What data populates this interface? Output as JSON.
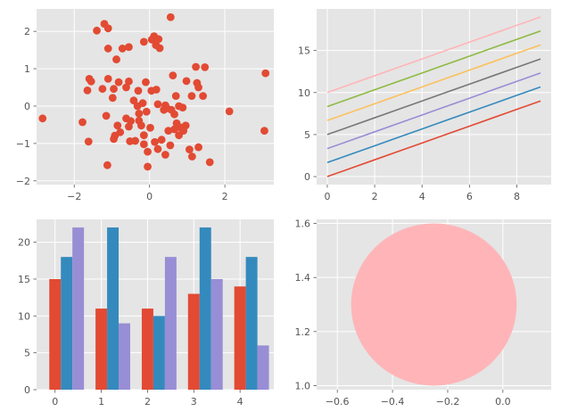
{
  "colors": {
    "background": "#E5E5E5",
    "grid": "#FFFFFF",
    "tick_text": "#555555",
    "cycle": [
      "#E24A33",
      "#348ABD",
      "#988ED5",
      "#777777",
      "#FBC15E",
      "#8EBA42",
      "#FFB5B8"
    ]
  },
  "chart_data": [
    {
      "type": "scatter",
      "xlim": [
        -3.0,
        3.3
      ],
      "ylim": [
        -2.1,
        2.6
      ],
      "xticks": [
        -2,
        0,
        2
      ],
      "yticks": [
        -2,
        -1,
        0,
        1,
        2
      ],
      "xtick_labels": [
        "−2",
        "0",
        "2"
      ],
      "ytick_labels": [
        "−2",
        "−1",
        "0",
        "1",
        "2"
      ],
      "grid": true,
      "color": "#E24A33",
      "points": [
        [
          0.56,
          2.38
        ],
        [
          -1.2,
          2.2
        ],
        [
          -1.1,
          2.08
        ],
        [
          -1.4,
          2.02
        ],
        [
          -0.72,
          1.54
        ],
        [
          -0.55,
          1.58
        ],
        [
          -1.1,
          1.54
        ],
        [
          -0.15,
          1.72
        ],
        [
          0.06,
          1.78
        ],
        [
          0.12,
          1.87
        ],
        [
          0.24,
          1.79
        ],
        [
          0.17,
          1.63
        ],
        [
          0.27,
          1.55
        ],
        [
          -0.88,
          1.25
        ],
        [
          1.23,
          1.05
        ],
        [
          1.47,
          1.04
        ],
        [
          0.62,
          0.82
        ],
        [
          0.98,
          0.67
        ],
        [
          -1.55,
          0.66
        ],
        [
          -1.6,
          0.73
        ],
        [
          -1.1,
          0.73
        ],
        [
          -0.82,
          0.64
        ],
        [
          -0.55,
          0.66
        ],
        [
          -0.1,
          0.64
        ],
        [
          1.26,
          0.62
        ],
        [
          1.3,
          0.5
        ],
        [
          -1.25,
          0.46
        ],
        [
          -0.95,
          0.46
        ],
        [
          -0.62,
          0.5
        ],
        [
          -0.3,
          0.41
        ],
        [
          0.05,
          0.41
        ],
        [
          0.18,
          0.44
        ],
        [
          1.42,
          0.27
        ],
        [
          1.12,
          0.27
        ],
        [
          0.7,
          0.27
        ],
        [
          -1.65,
          0.42
        ],
        [
          -0.98,
          0.22
        ],
        [
          -0.42,
          0.15
        ],
        [
          -0.18,
          0.08
        ],
        [
          0.22,
          0.05
        ],
        [
          0.42,
          0.02
        ],
        [
          -0.32,
          0.0
        ],
        [
          0.78,
          0.0
        ],
        [
          0.88,
          -0.04
        ],
        [
          0.46,
          -0.06
        ],
        [
          0.58,
          -0.1
        ],
        [
          -0.08,
          -0.15
        ],
        [
          -0.28,
          -0.2
        ],
        [
          0.38,
          -0.1
        ],
        [
          0.66,
          -0.22
        ],
        [
          -1.15,
          -0.26
        ],
        [
          -0.62,
          -0.33
        ],
        [
          -0.5,
          -0.4
        ],
        [
          -0.28,
          -0.39
        ],
        [
          0.72,
          -0.46
        ],
        [
          0.96,
          -0.52
        ],
        [
          0.82,
          -0.57
        ],
        [
          0.66,
          -0.62
        ],
        [
          -1.78,
          -0.43
        ],
        [
          -0.85,
          -0.52
        ],
        [
          -0.22,
          -0.52
        ],
        [
          -0.55,
          -0.55
        ],
        [
          0.02,
          -0.58
        ],
        [
          -0.78,
          -0.7
        ],
        [
          0.5,
          -0.66
        ],
        [
          0.9,
          -0.66
        ],
        [
          -0.92,
          -0.79
        ],
        [
          -0.15,
          -0.78
        ],
        [
          0.78,
          -0.78
        ],
        [
          0.32,
          -0.9
        ],
        [
          -0.95,
          -0.88
        ],
        [
          -0.52,
          -0.94
        ],
        [
          -0.38,
          -0.93
        ],
        [
          -0.15,
          -1.02
        ],
        [
          0.14,
          -0.96
        ],
        [
          0.55,
          -1.05
        ],
        [
          1.3,
          -1.1
        ],
        [
          1.06,
          -1.16
        ],
        [
          0.22,
          -1.15
        ],
        [
          -0.05,
          -1.22
        ],
        [
          0.42,
          -1.3
        ],
        [
          -1.62,
          -0.95
        ],
        [
          -1.12,
          -1.58
        ],
        [
          -0.05,
          -1.62
        ],
        [
          1.13,
          -1.35
        ],
        [
          1.6,
          -1.5
        ],
        [
          -2.84,
          -0.33
        ],
        [
          2.12,
          -0.14
        ],
        [
          3.05,
          -0.66
        ],
        [
          3.08,
          0.88
        ]
      ]
    },
    {
      "type": "line",
      "xlim": [
        -0.45,
        9.45
      ],
      "ylim": [
        -0.95,
        19.95
      ],
      "xticks": [
        0,
        2,
        4,
        6,
        8
      ],
      "yticks": [
        0,
        5,
        10,
        15
      ],
      "xtick_labels": [
        "0",
        "2",
        "4",
        "6",
        "8"
      ],
      "ytick_labels": [
        "0",
        "5",
        "10",
        "15"
      ],
      "grid": true,
      "x": [
        0,
        1,
        2,
        3,
        4,
        5,
        6,
        7,
        8,
        9
      ],
      "series": [
        {
          "color": "#E24A33",
          "values": [
            0.0,
            1.0,
            2.0,
            3.0,
            4.0,
            5.0,
            6.0,
            7.0,
            8.0,
            9.0
          ]
        },
        {
          "color": "#348ABD",
          "values": [
            1.67,
            2.67,
            3.67,
            4.67,
            5.67,
            6.67,
            7.67,
            8.67,
            9.67,
            10.67
          ]
        },
        {
          "color": "#988ED5",
          "values": [
            3.33,
            4.33,
            5.33,
            6.33,
            7.33,
            8.33,
            9.33,
            10.33,
            11.33,
            12.33
          ]
        },
        {
          "color": "#777777",
          "values": [
            5.0,
            6.0,
            7.0,
            8.0,
            9.0,
            10.0,
            11.0,
            12.0,
            13.0,
            14.0
          ]
        },
        {
          "color": "#FBC15E",
          "values": [
            6.67,
            7.67,
            8.67,
            9.67,
            10.67,
            11.67,
            12.67,
            13.67,
            14.67,
            15.67
          ]
        },
        {
          "color": "#8EBA42",
          "values": [
            8.33,
            9.33,
            10.33,
            11.33,
            12.33,
            13.33,
            14.33,
            15.33,
            16.33,
            17.33
          ]
        },
        {
          "color": "#FFB5B8",
          "values": [
            10.0,
            11.0,
            12.0,
            13.0,
            14.0,
            15.0,
            16.0,
            17.0,
            18.0,
            19.0
          ]
        }
      ]
    },
    {
      "type": "bar",
      "xlim": [
        -0.4,
        4.73
      ],
      "ylim": [
        0,
        23.1
      ],
      "xticks": [
        0,
        1,
        2,
        3,
        4
      ],
      "yticks": [
        0,
        5,
        10,
        15,
        20
      ],
      "xtick_labels": [
        "0",
        "1",
        "2",
        "3",
        "4"
      ],
      "ytick_labels": [
        "0",
        "5",
        "10",
        "15",
        "20"
      ],
      "grid": true,
      "bar_width": 0.25,
      "categories": [
        0,
        1,
        2,
        3,
        4
      ],
      "series": [
        {
          "color": "#E24A33",
          "values": [
            15,
            11,
            11,
            13,
            14
          ]
        },
        {
          "color": "#348ABD",
          "values": [
            18,
            22,
            10,
            22,
            18
          ]
        },
        {
          "color": "#988ED5",
          "values": [
            22,
            9,
            18,
            15,
            6
          ]
        }
      ]
    },
    {
      "type": "circle",
      "xlim": [
        -0.675,
        0.175
      ],
      "ylim": [
        0.985,
        1.615
      ],
      "xticks": [
        -0.6,
        -0.4,
        -0.2,
        0.0
      ],
      "yticks": [
        1.0,
        1.2,
        1.4,
        1.6
      ],
      "xtick_labels": [
        "−0.6",
        "−0.4",
        "−0.2",
        "0.0"
      ],
      "ytick_labels": [
        "1.0",
        "1.2",
        "1.4",
        "1.6"
      ],
      "grid": true,
      "circle": {
        "cx": -0.25,
        "cy": 1.3,
        "r": 0.3,
        "color": "#FFB5B8"
      }
    }
  ]
}
